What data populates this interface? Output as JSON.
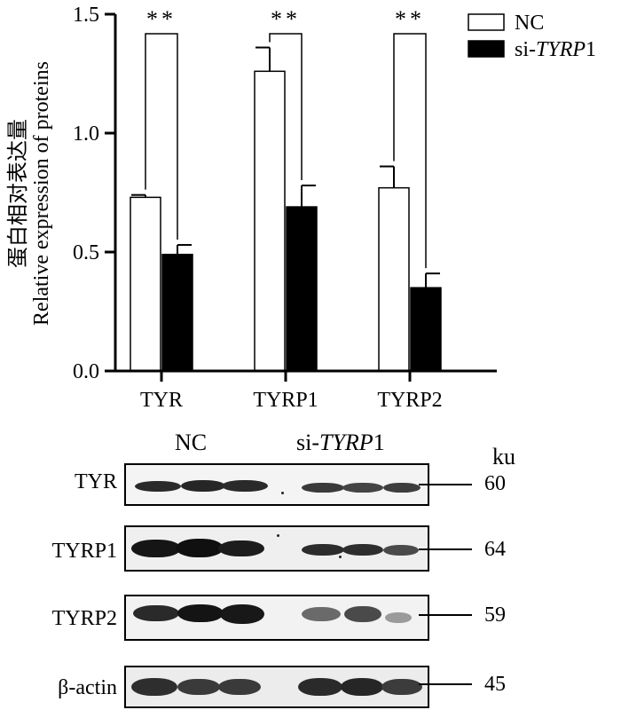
{
  "chart_data": {
    "type": "bar",
    "ylabel_cn": "蛋白相对表达量",
    "ylabel": "Relative expression of proteins",
    "categories": [
      "TYR",
      "TYRP1",
      "TYRP2"
    ],
    "ylim": [
      0,
      1.5
    ],
    "yticks": [
      "0.0",
      "0.5",
      "1.0",
      "1.5"
    ],
    "ytick_values": [
      0,
      0.5,
      1.0,
      1.5
    ],
    "series": [
      {
        "name": "NC",
        "values": [
          0.73,
          1.26,
          0.77
        ],
        "errors": [
          0.01,
          0.1,
          0.09
        ],
        "fill": "#ffffff"
      },
      {
        "name": "si-TYRP1",
        "values": [
          0.49,
          0.69,
          0.35
        ],
        "errors": [
          0.04,
          0.09,
          0.06
        ],
        "fill": "#000000"
      }
    ],
    "significance": [
      "**",
      "**",
      "**"
    ],
    "legend": [
      {
        "text": "NC",
        "fill": "#ffffff"
      },
      {
        "prefix": "si-",
        "italic": "TYRP",
        "suffix": "1",
        "fill": "#000000"
      }
    ],
    "legend_position": "top-right",
    "grid": false
  },
  "blot": {
    "groups": {
      "nc": "NC",
      "si_prefix": "si-",
      "si_italic": "TYRP",
      "si_suffix": "1"
    },
    "unit": "ku",
    "rows": [
      {
        "label": "TYR",
        "kd": "60"
      },
      {
        "label": "TYRP1",
        "kd": "64"
      },
      {
        "label": "TYRP2",
        "kd": "59"
      },
      {
        "label": "β-actin",
        "kd": "45"
      }
    ]
  }
}
